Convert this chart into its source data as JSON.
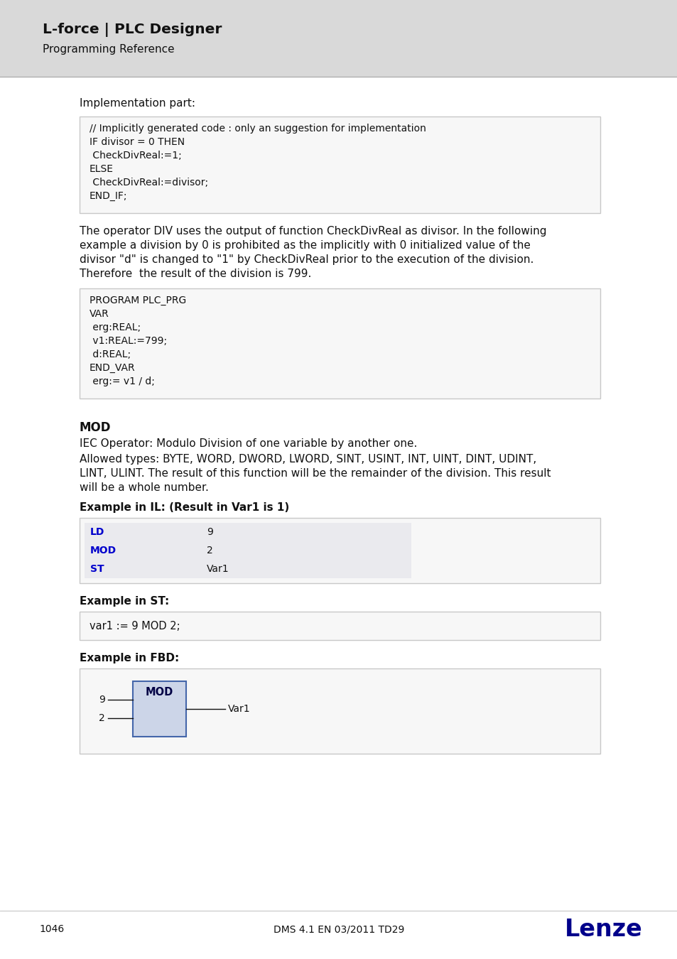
{
  "header_bg": "#d9d9d9",
  "header_title": "L-force | PLC Designer",
  "header_subtitle": "Programming Reference",
  "footer_page": "1046",
  "footer_center": "DMS 4.1 EN 03/2011 TD29",
  "footer_logo": "Lenze",
  "body_bg": "#ffffff",
  "section_label": "Implementation part:",
  "code_box1_lines": [
    "// Implicitly generated code : only an suggestion for implementation",
    "IF divisor = 0 THEN",
    " CheckDivReal:=1;",
    "ELSE",
    " CheckDivReal:=divisor;",
    "END_IF;"
  ],
  "paragraph1_lines": [
    "The operator DIV uses the output of function CheckDivReal as divisor. In the following",
    "example a division by 0 is prohibited as the implicitly with 0 initialized value of the",
    "divisor \"d\" is changed to \"1\" by CheckDivReal prior to the execution of the division.",
    "Therefore  the result of the division is 799."
  ],
  "code_box2_lines": [
    "PROGRAM PLC_PRG",
    "VAR",
    " erg:REAL;",
    " v1:REAL:=799;",
    " d:REAL;",
    "END_VAR",
    " erg:= v1 / d;"
  ],
  "mod_heading": "MOD",
  "mod_para1": "IEC Operator: Modulo Division of one variable by another one.",
  "mod_para2_lines": [
    "Allowed types: BYTE, WORD, DWORD, LWORD, SINT, USINT, INT, UINT, DINT, UDINT,",
    "LINT, ULINT. The result of this function will be the remainder of the division. This result",
    "will be a whole number."
  ],
  "mod_example_il_label": "Example in IL: (Result in Var1 is 1)",
  "il_table": [
    {
      "col1": "LD",
      "col2": "9"
    },
    {
      "col1": "MOD",
      "col2": "2"
    },
    {
      "col1": "ST",
      "col2": "Var1"
    }
  ],
  "il_col1_color": "#0000cc",
  "mod_example_st_label": "Example in ST:",
  "st_code": "var1 := 9 MOD 2;",
  "mod_example_fbd_label": "Example in FBD:",
  "fbd_box_label": "MOD",
  "fbd_inputs": [
    "9",
    "2"
  ],
  "fbd_output": "Var1",
  "code_box_bg": "#f7f7f7",
  "code_box_border": "#c8c8c8",
  "il_table_row_bg": "#eaeaee",
  "il_table_bg": "#f7f7f7",
  "il_table_border": "#c8c8c8",
  "fbd_block_fill": "#ccd5e8",
  "fbd_block_border": "#4466aa"
}
